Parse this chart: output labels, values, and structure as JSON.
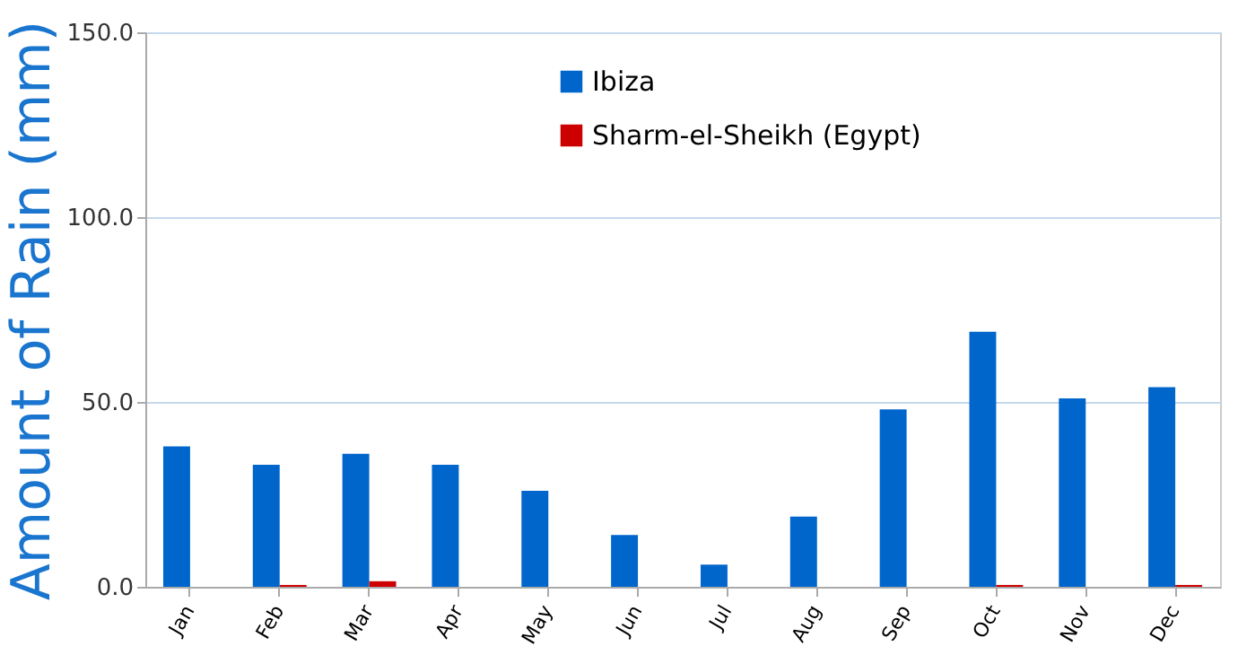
{
  "chart_data": {
    "type": "bar",
    "ylabel": "Amount of Rain (mm)",
    "categories": [
      "Jan",
      "Feb",
      "Mar",
      "Apr",
      "May",
      "Jun",
      "Jul",
      "Aug",
      "Sep",
      "Oct",
      "Nov",
      "Dec"
    ],
    "series": [
      {
        "name": "Ibiza",
        "color": "#0066cc",
        "values": [
          38,
          33,
          36,
          33,
          26,
          14,
          6,
          19,
          48,
          69,
          51,
          54
        ]
      },
      {
        "name": "Sharm-el-Sheikh (Egypt)",
        "color": "#cc0000",
        "values": [
          0,
          0.5,
          1.5,
          0,
          0,
          0,
          0,
          0,
          0,
          0.5,
          0,
          0.5
        ]
      }
    ],
    "ylim": [
      0,
      150
    ],
    "yticks": [
      {
        "value": 0,
        "label": "0.0"
      },
      {
        "value": 50,
        "label": "50.0"
      },
      {
        "value": 100,
        "label": "100.0"
      },
      {
        "value": 150,
        "label": "150.0"
      }
    ],
    "grid": "y",
    "legend": "top"
  }
}
